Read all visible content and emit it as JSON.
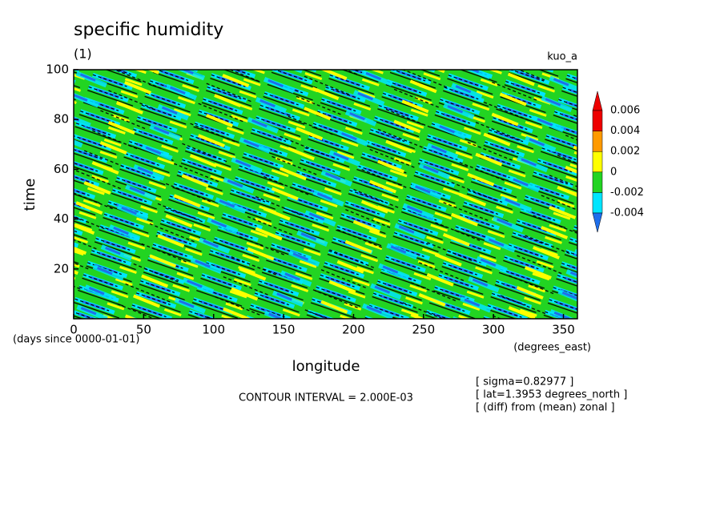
{
  "chart_data": {
    "type": "contour",
    "title": "specific humidity",
    "subtitle": "(1)",
    "run_label": "kuo_a",
    "xlabel": "longitude",
    "ylabel": "time",
    "time_units": "(days since 0000-01-01)",
    "x_units": "(degrees_east)",
    "contour_interval": "CONTOUR INTERVAL = 2.000E-03",
    "notes": [
      "[ sigma=0.82977 ]",
      "[ lat=1.3953 degrees_north ]",
      "[ (diff) from (mean) zonal ]"
    ],
    "xlim": [
      0,
      360
    ],
    "xticks": [
      0,
      50,
      100,
      150,
      200,
      250,
      300,
      350
    ],
    "ylim": [
      0,
      100
    ],
    "yticks": [
      20,
      40,
      60,
      80,
      100
    ],
    "levels": [
      -0.004,
      -0.002,
      0,
      0.002,
      0.004,
      0.006
    ],
    "level_colors": [
      "#1e6eeb",
      "#00e5ff",
      "#22d422",
      "#ffff00",
      "#ff9a00",
      "#ee0000",
      "#ee0000"
    ]
  }
}
